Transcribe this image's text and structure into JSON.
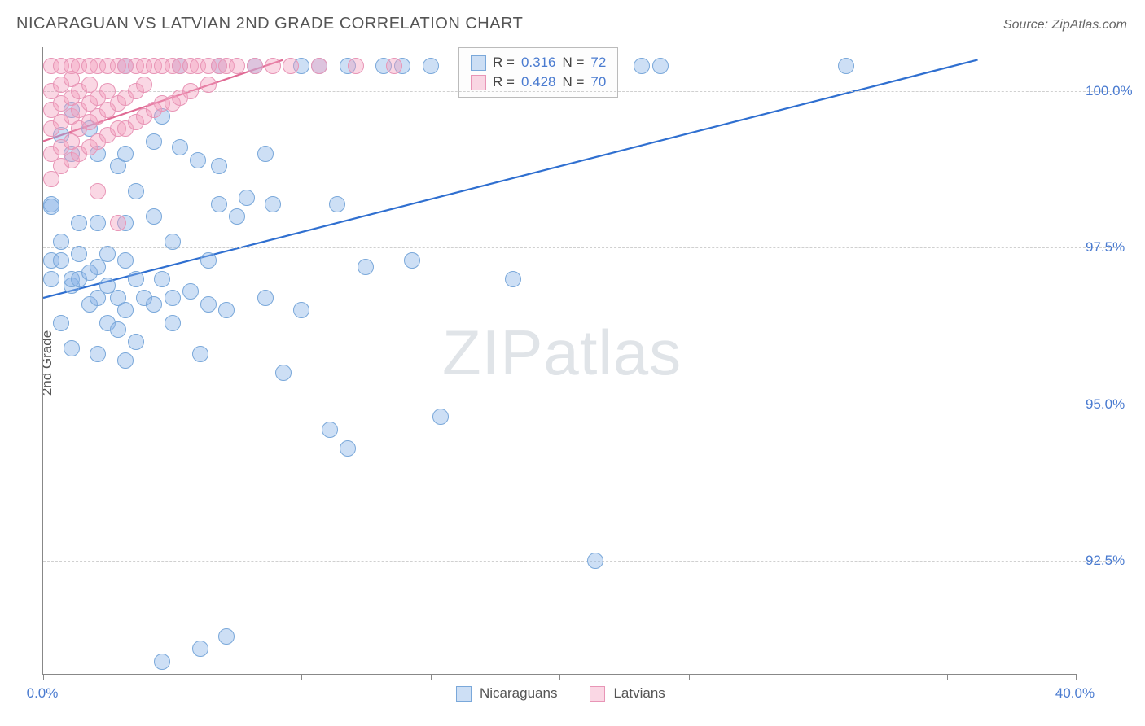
{
  "title": "NICARAGUAN VS LATVIAN 2ND GRADE CORRELATION CHART",
  "source": "Source: ZipAtlas.com",
  "ylabel": "2nd Grade",
  "watermark_zip": "ZIP",
  "watermark_atlas": "atlas",
  "chart": {
    "type": "scatter",
    "xlim": [
      0,
      40
    ],
    "ylim": [
      90.7,
      100.7
    ],
    "xticks": [
      0,
      5,
      10,
      15,
      20,
      25,
      30,
      35,
      40
    ],
    "xtick_labels": {
      "0": "0.0%",
      "40": "40.0%"
    },
    "yticks": [
      92.5,
      95.0,
      97.5,
      100.0
    ],
    "ytick_labels": [
      "92.5%",
      "95.0%",
      "97.5%",
      "100.0%"
    ],
    "background_color": "#ffffff",
    "grid_color": "#d0d0d0",
    "axis_color": "#888888",
    "tick_label_color": "#4a7bd0",
    "marker_radius": 9,
    "marker_stroke_width": 1.2,
    "series": [
      {
        "name": "Nicaraguans",
        "fill_color": "rgba(135,178,230,0.42)",
        "stroke_color": "#7aa8da",
        "trend_color": "#2f6fd0",
        "trend": {
          "x1": 0,
          "y1": 96.7,
          "x2": 36.2,
          "y2": 100.5
        },
        "R": 0.316,
        "N": 72,
        "points": [
          [
            0.3,
            97.0
          ],
          [
            0.3,
            97.3
          ],
          [
            0.3,
            98.2
          ],
          [
            0.3,
            98.15
          ],
          [
            0.7,
            96.3
          ],
          [
            0.7,
            97.3
          ],
          [
            0.7,
            97.6
          ],
          [
            0.7,
            99.3
          ],
          [
            1.1,
            95.9
          ],
          [
            1.1,
            96.9
          ],
          [
            1.1,
            97.0
          ],
          [
            1.1,
            99.0
          ],
          [
            1.1,
            99.7
          ],
          [
            1.4,
            97.0
          ],
          [
            1.4,
            97.4
          ],
          [
            1.4,
            97.9
          ],
          [
            1.8,
            96.6
          ],
          [
            1.8,
            97.1
          ],
          [
            1.8,
            99.4
          ],
          [
            2.1,
            95.8
          ],
          [
            2.1,
            96.7
          ],
          [
            2.1,
            97.2
          ],
          [
            2.1,
            97.9
          ],
          [
            2.1,
            99.0
          ],
          [
            2.5,
            96.3
          ],
          [
            2.5,
            96.9
          ],
          [
            2.5,
            97.4
          ],
          [
            2.9,
            96.2
          ],
          [
            2.9,
            96.7
          ],
          [
            2.9,
            98.8
          ],
          [
            3.2,
            95.7
          ],
          [
            3.2,
            96.5
          ],
          [
            3.2,
            97.3
          ],
          [
            3.2,
            97.9
          ],
          [
            3.2,
            99.0
          ],
          [
            3.2,
            100.4
          ],
          [
            3.6,
            96.0
          ],
          [
            3.6,
            97.0
          ],
          [
            3.6,
            98.4
          ],
          [
            3.9,
            96.7
          ],
          [
            4.3,
            96.6
          ],
          [
            4.3,
            98.0
          ],
          [
            4.3,
            99.2
          ],
          [
            4.6,
            97.0
          ],
          [
            4.6,
            99.6
          ],
          [
            5.0,
            96.3
          ],
          [
            5.0,
            96.7
          ],
          [
            5.0,
            97.6
          ],
          [
            5.3,
            99.1
          ],
          [
            5.3,
            100.4
          ],
          [
            5.7,
            96.8
          ],
          [
            6.0,
            98.9
          ],
          [
            6.1,
            95.8
          ],
          [
            6.4,
            96.6
          ],
          [
            6.4,
            97.3
          ],
          [
            6.8,
            98.2
          ],
          [
            6.8,
            98.8
          ],
          [
            6.8,
            100.4
          ],
          [
            7.1,
            96.5
          ],
          [
            7.5,
            98.0
          ],
          [
            7.9,
            98.3
          ],
          [
            8.2,
            100.4
          ],
          [
            8.6,
            99.0
          ],
          [
            8.6,
            96.7
          ],
          [
            8.9,
            98.2
          ],
          [
            9.3,
            95.5
          ],
          [
            10.0,
            100.4
          ],
          [
            10.0,
            96.5
          ],
          [
            10.7,
            100.4
          ],
          [
            11.1,
            94.6
          ],
          [
            11.4,
            98.2
          ],
          [
            11.8,
            100.4
          ],
          [
            11.8,
            94.3
          ],
          [
            12.5,
            97.2
          ],
          [
            13.2,
            100.4
          ],
          [
            13.9,
            100.4
          ],
          [
            14.3,
            97.3
          ],
          [
            15.0,
            100.4
          ],
          [
            18.2,
            97.0
          ],
          [
            21.4,
            92.5
          ],
          [
            23.2,
            100.4
          ],
          [
            23.9,
            100.4
          ],
          [
            31.1,
            100.4
          ],
          [
            4.6,
            90.9
          ],
          [
            6.1,
            91.1
          ],
          [
            7.1,
            91.3
          ],
          [
            15.4,
            94.8
          ]
        ]
      },
      {
        "name": "Latvians",
        "fill_color": "rgba(242,160,190,0.42)",
        "stroke_color": "#e895b6",
        "trend_color": "#e06a94",
        "trend": {
          "x1": 0,
          "y1": 99.2,
          "x2": 9.3,
          "y2": 100.5
        },
        "R": 0.428,
        "N": 70,
        "points": [
          [
            0.3,
            98.6
          ],
          [
            0.3,
            99.0
          ],
          [
            0.3,
            99.4
          ],
          [
            0.3,
            99.7
          ],
          [
            0.3,
            100.0
          ],
          [
            0.3,
            100.4
          ],
          [
            0.7,
            98.8
          ],
          [
            0.7,
            99.1
          ],
          [
            0.7,
            99.5
          ],
          [
            0.7,
            99.8
          ],
          [
            0.7,
            100.1
          ],
          [
            0.7,
            100.4
          ],
          [
            1.1,
            98.9
          ],
          [
            1.1,
            99.2
          ],
          [
            1.1,
            99.6
          ],
          [
            1.1,
            99.9
          ],
          [
            1.1,
            100.2
          ],
          [
            1.1,
            100.4
          ],
          [
            1.4,
            99.0
          ],
          [
            1.4,
            99.4
          ],
          [
            1.4,
            99.7
          ],
          [
            1.4,
            100.0
          ],
          [
            1.4,
            100.4
          ],
          [
            1.8,
            99.1
          ],
          [
            1.8,
            99.5
          ],
          [
            1.8,
            99.8
          ],
          [
            1.8,
            100.1
          ],
          [
            1.8,
            100.4
          ],
          [
            2.1,
            99.2
          ],
          [
            2.1,
            99.6
          ],
          [
            2.1,
            99.9
          ],
          [
            2.1,
            100.4
          ],
          [
            2.5,
            99.3
          ],
          [
            2.5,
            99.7
          ],
          [
            2.5,
            100.0
          ],
          [
            2.5,
            100.4
          ],
          [
            2.9,
            99.4
          ],
          [
            2.9,
            99.8
          ],
          [
            2.9,
            100.4
          ],
          [
            3.2,
            99.4
          ],
          [
            3.2,
            99.9
          ],
          [
            3.2,
            100.4
          ],
          [
            3.6,
            99.5
          ],
          [
            3.6,
            100.0
          ],
          [
            3.6,
            100.4
          ],
          [
            3.9,
            99.6
          ],
          [
            3.9,
            100.1
          ],
          [
            3.9,
            100.4
          ],
          [
            4.3,
            99.7
          ],
          [
            4.3,
            100.4
          ],
          [
            4.6,
            99.8
          ],
          [
            4.6,
            100.4
          ],
          [
            5.0,
            99.8
          ],
          [
            5.0,
            100.4
          ],
          [
            5.3,
            99.9
          ],
          [
            5.3,
            100.4
          ],
          [
            5.7,
            100.0
          ],
          [
            5.7,
            100.4
          ],
          [
            6.0,
            100.4
          ],
          [
            6.4,
            100.1
          ],
          [
            6.4,
            100.4
          ],
          [
            6.8,
            100.4
          ],
          [
            7.1,
            100.4
          ],
          [
            7.5,
            100.4
          ],
          [
            8.2,
            100.4
          ],
          [
            8.9,
            100.4
          ],
          [
            9.6,
            100.4
          ],
          [
            10.7,
            100.4
          ],
          [
            12.1,
            100.4
          ],
          [
            13.6,
            100.4
          ],
          [
            2.1,
            98.4
          ],
          [
            2.9,
            97.9
          ]
        ]
      }
    ]
  },
  "legend_top": {
    "rows": [
      {
        "sw_fill": "rgba(135,178,230,0.42)",
        "sw_stroke": "#7aa8da",
        "r_lbl": "R = ",
        "r_val": "0.316",
        "n_lbl": "  N = ",
        "n_val": "72"
      },
      {
        "sw_fill": "rgba(242,160,190,0.42)",
        "sw_stroke": "#e895b6",
        "r_lbl": "R = ",
        "r_val": "0.428",
        "n_lbl": "  N = ",
        "n_val": "70"
      }
    ]
  },
  "legend_bottom": {
    "items": [
      {
        "sw_fill": "rgba(135,178,230,0.42)",
        "sw_stroke": "#7aa8da",
        "label": "Nicaraguans"
      },
      {
        "sw_fill": "rgba(242,160,190,0.42)",
        "sw_stroke": "#e895b6",
        "label": "Latvians"
      }
    ]
  }
}
